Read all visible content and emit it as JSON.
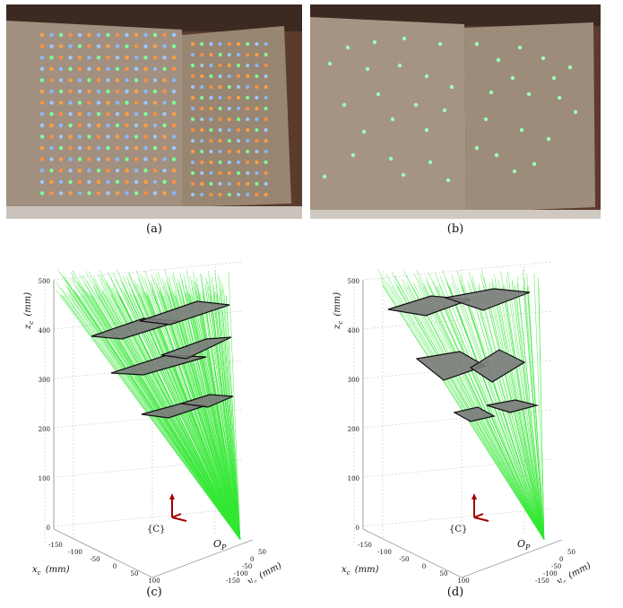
{
  "captions": {
    "a": "(a)",
    "b": "(b)",
    "c": "(c)",
    "d": "(d)"
  },
  "colors": {
    "ray": "#33e833",
    "plane": "#7a7a7a",
    "board": "#a18f7f",
    "axis_frame": "#a00000"
  },
  "plot_c": {
    "z_label": "z",
    "z_sub": "c",
    "z_unit": "(mm)",
    "x_label": "x",
    "x_sub": "c",
    "x_unit": "(mm)",
    "y_label": "y",
    "y_sub": "c",
    "y_unit": "(mm)",
    "frame_label": "{C}",
    "origin_label": "O",
    "origin_sub": "P",
    "z_ticks": [
      "500",
      "400",
      "300",
      "200",
      "100",
      "0"
    ],
    "x_ticks": [
      "-150",
      "-100",
      "-50",
      "0",
      "50",
      "100"
    ],
    "y_ticks": [
      "50",
      "0",
      "-50",
      "-100",
      "-150"
    ]
  },
  "plot_d": {
    "z_label": "z",
    "z_sub": "c",
    "z_unit": "(mm)",
    "x_label": "x",
    "x_sub": "c",
    "x_unit": "(mm)",
    "y_label": "y",
    "y_sub": "c",
    "y_unit": "(mm)",
    "frame_label": "{C}",
    "origin_label": "O",
    "origin_sub": "P",
    "z_ticks": [
      "500",
      "400",
      "300",
      "200",
      "100",
      "0"
    ],
    "x_ticks": [
      "-150",
      "-100",
      "-50",
      "0",
      "50",
      "100"
    ],
    "y_ticks": [
      "50",
      "0",
      "-50",
      "-100",
      "-150"
    ]
  }
}
